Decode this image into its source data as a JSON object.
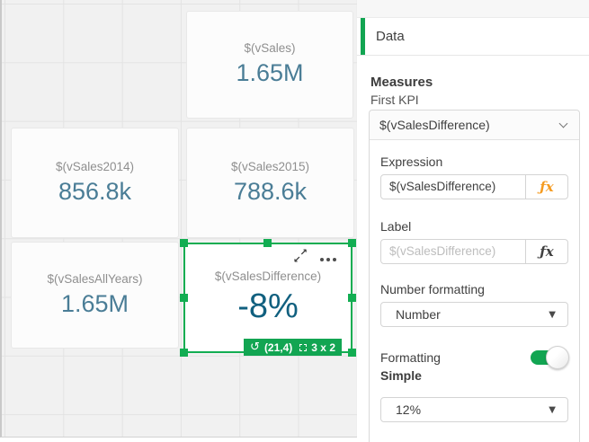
{
  "canvas": {
    "kpis": [
      {
        "label": "$(vSales)",
        "value": "1.65M"
      },
      {
        "label": "$(vSales2014)",
        "value": "856.8k"
      },
      {
        "label": "$(vSales2015)",
        "value": "788.6k"
      },
      {
        "label": "$(vSalesAllYears)",
        "value": "1.65M"
      },
      {
        "label": "$(vSalesDifference)",
        "value": "-8%"
      }
    ],
    "selection": {
      "position": "(21,4)",
      "size": "3 x 2"
    }
  },
  "panel": {
    "tab_label": "Data",
    "measures_heading": "Measures",
    "kpi_name": "First KPI",
    "measure_dropdown_value": "$(vSalesDifference)",
    "expression_label": "Expression",
    "expression_value": "$(vSalesDifference)",
    "label_label": "Label",
    "label_placeholder": "$(vSalesDifference)",
    "number_formatting_label": "Number formatting",
    "number_formatting_value": "Number",
    "formatting_label": "Formatting",
    "formatting_mode": "Simple",
    "formatting_value": "12%"
  },
  "icons": {
    "fx": "ƒx",
    "expand_ne": "↗",
    "expand_sw": "↙",
    "rotate": "↺",
    "dropdown_triangle": "▼"
  },
  "colors": {
    "accent_green": "#12a552",
    "value_teal": "#4a7d96",
    "value_selected_teal": "#11607f",
    "fx_orange": "#f59b20"
  }
}
